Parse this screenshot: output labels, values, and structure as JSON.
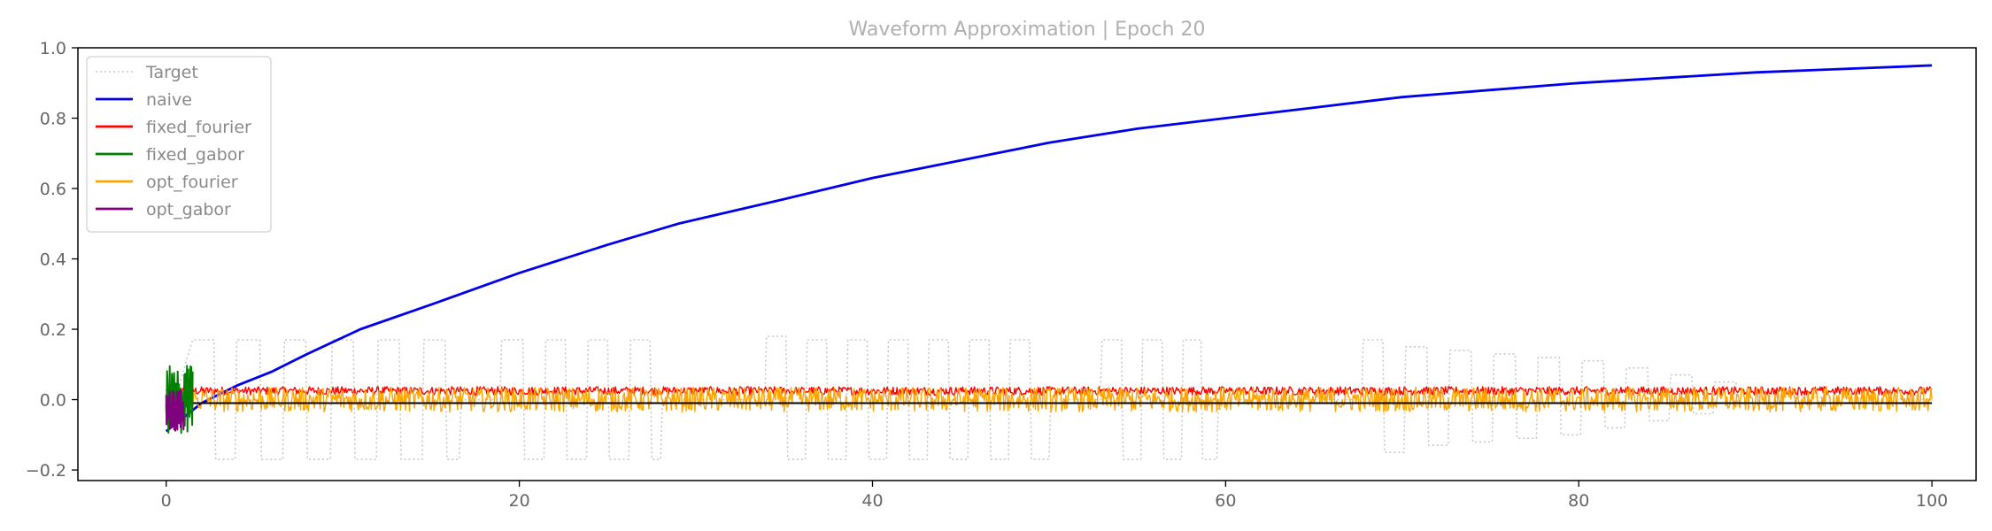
{
  "chart_data": {
    "type": "line",
    "title": "Waveform Approximation | Epoch 20",
    "xlabel": "",
    "ylabel": "",
    "xlim": [
      -5,
      102.5
    ],
    "ylim": [
      -0.23,
      1.0
    ],
    "xticks": [
      0,
      20,
      40,
      60,
      80,
      100
    ],
    "xtick_labels": [
      "0",
      "20",
      "40",
      "60",
      "80",
      "100"
    ],
    "yticks": [
      -0.2,
      0.0,
      0.2,
      0.4,
      0.6,
      0.8,
      1.0
    ],
    "ytick_labels": [
      "−0.2",
      "0.0",
      "0.2",
      "0.4",
      "0.6",
      "0.8",
      "1.0"
    ],
    "grid": false,
    "legend_position": "top-left",
    "series": [
      {
        "name": "Target",
        "color": "#c8c8c8",
        "style": "dotted",
        "description_points": [
          {
            "x": 0.3,
            "y": -0.03
          },
          {
            "x": 1.5,
            "y": 0.17
          },
          {
            "x": 2.7,
            "y": 0.17
          },
          {
            "x": 2.8,
            "y": -0.17
          },
          {
            "x": 3.9,
            "y": -0.17
          },
          {
            "x": 4.0,
            "y": 0.17
          },
          {
            "x": 5.3,
            "y": 0.17
          },
          {
            "x": 5.4,
            "y": -0.17
          },
          {
            "x": 6.6,
            "y": -0.17
          },
          {
            "x": 6.7,
            "y": 0.17
          },
          {
            "x": 7.9,
            "y": 0.17
          },
          {
            "x": 8.0,
            "y": -0.17
          },
          {
            "x": 9.3,
            "y": -0.17
          },
          {
            "x": 9.4,
            "y": 0.17
          },
          {
            "x": 10.6,
            "y": 0.17
          },
          {
            "x": 10.7,
            "y": -0.17
          },
          {
            "x": 11.9,
            "y": -0.17
          },
          {
            "x": 12.0,
            "y": 0.17
          },
          {
            "x": 13.2,
            "y": 0.17
          },
          {
            "x": 13.3,
            "y": -0.17
          },
          {
            "x": 14.5,
            "y": -0.17
          },
          {
            "x": 14.6,
            "y": 0.17
          },
          {
            "x": 15.8,
            "y": 0.17
          },
          {
            "x": 15.9,
            "y": -0.17
          },
          {
            "x": 16.6,
            "y": -0.17
          },
          {
            "x": 16.7,
            "y": 0.0
          },
          {
            "x": 18.9,
            "y": 0.0
          },
          {
            "x": 19.0,
            "y": 0.17
          },
          {
            "x": 20.2,
            "y": 0.17
          },
          {
            "x": 20.3,
            "y": -0.17
          },
          {
            "x": 21.4,
            "y": -0.17
          },
          {
            "x": 21.5,
            "y": 0.17
          },
          {
            "x": 22.6,
            "y": 0.17
          },
          {
            "x": 22.7,
            "y": -0.17
          },
          {
            "x": 23.8,
            "y": -0.17
          },
          {
            "x": 23.9,
            "y": 0.17
          },
          {
            "x": 25.0,
            "y": 0.17
          },
          {
            "x": 25.1,
            "y": -0.17
          },
          {
            "x": 26.2,
            "y": -0.17
          },
          {
            "x": 26.3,
            "y": 0.17
          },
          {
            "x": 27.4,
            "y": 0.17
          },
          {
            "x": 27.5,
            "y": -0.17
          },
          {
            "x": 28.0,
            "y": -0.17
          },
          {
            "x": 28.1,
            "y": 0.0
          },
          {
            "x": 33.9,
            "y": 0.0
          },
          {
            "x": 34.0,
            "y": 0.18
          },
          {
            "x": 35.1,
            "y": 0.18
          },
          {
            "x": 35.2,
            "y": -0.17
          },
          {
            "x": 36.2,
            "y": -0.17
          },
          {
            "x": 36.3,
            "y": 0.17
          },
          {
            "x": 37.4,
            "y": 0.17
          },
          {
            "x": 37.5,
            "y": -0.17
          },
          {
            "x": 38.5,
            "y": -0.17
          },
          {
            "x": 38.6,
            "y": 0.17
          },
          {
            "x": 39.7,
            "y": 0.17
          },
          {
            "x": 39.8,
            "y": -0.17
          },
          {
            "x": 40.8,
            "y": -0.17
          },
          {
            "x": 40.9,
            "y": 0.17
          },
          {
            "x": 42.0,
            "y": 0.17
          },
          {
            "x": 42.1,
            "y": -0.17
          },
          {
            "x": 43.1,
            "y": -0.17
          },
          {
            "x": 43.2,
            "y": 0.17
          },
          {
            "x": 44.3,
            "y": 0.17
          },
          {
            "x": 44.4,
            "y": -0.17
          },
          {
            "x": 45.4,
            "y": -0.17
          },
          {
            "x": 45.5,
            "y": 0.17
          },
          {
            "x": 46.6,
            "y": 0.17
          },
          {
            "x": 46.7,
            "y": -0.17
          },
          {
            "x": 47.7,
            "y": -0.17
          },
          {
            "x": 47.8,
            "y": 0.17
          },
          {
            "x": 48.9,
            "y": 0.17
          },
          {
            "x": 49.0,
            "y": -0.17
          },
          {
            "x": 50.0,
            "y": -0.17
          },
          {
            "x": 50.1,
            "y": 0.0
          },
          {
            "x": 52.9,
            "y": 0.0
          },
          {
            "x": 53.0,
            "y": 0.17
          },
          {
            "x": 54.1,
            "y": 0.17
          },
          {
            "x": 54.2,
            "y": -0.17
          },
          {
            "x": 55.2,
            "y": -0.17
          },
          {
            "x": 55.3,
            "y": 0.17
          },
          {
            "x": 56.4,
            "y": 0.17
          },
          {
            "x": 56.5,
            "y": -0.17
          },
          {
            "x": 57.5,
            "y": -0.17
          },
          {
            "x": 57.6,
            "y": 0.17
          },
          {
            "x": 58.6,
            "y": 0.17
          },
          {
            "x": 58.7,
            "y": -0.17
          },
          {
            "x": 59.5,
            "y": -0.17
          },
          {
            "x": 59.6,
            "y": 0.0
          },
          {
            "x": 67.7,
            "y": 0.0
          },
          {
            "x": 67.8,
            "y": 0.17
          },
          {
            "x": 68.9,
            "y": 0.17
          },
          {
            "x": 69.0,
            "y": -0.15
          },
          {
            "x": 70.1,
            "y": -0.15
          },
          {
            "x": 70.2,
            "y": 0.15
          },
          {
            "x": 71.4,
            "y": 0.15
          },
          {
            "x": 71.5,
            "y": -0.13
          },
          {
            "x": 72.6,
            "y": -0.13
          },
          {
            "x": 72.7,
            "y": 0.14
          },
          {
            "x": 73.9,
            "y": 0.14
          },
          {
            "x": 74.0,
            "y": -0.12
          },
          {
            "x": 75.1,
            "y": -0.12
          },
          {
            "x": 75.2,
            "y": 0.13
          },
          {
            "x": 76.4,
            "y": 0.13
          },
          {
            "x": 76.5,
            "y": -0.11
          },
          {
            "x": 77.6,
            "y": -0.11
          },
          {
            "x": 77.7,
            "y": 0.12
          },
          {
            "x": 78.9,
            "y": 0.12
          },
          {
            "x": 79.0,
            "y": -0.1
          },
          {
            "x": 80.1,
            "y": -0.1
          },
          {
            "x": 80.2,
            "y": 0.11
          },
          {
            "x": 81.4,
            "y": 0.11
          },
          {
            "x": 81.5,
            "y": -0.08
          },
          {
            "x": 82.6,
            "y": -0.08
          },
          {
            "x": 82.7,
            "y": 0.09
          },
          {
            "x": 83.9,
            "y": 0.09
          },
          {
            "x": 84.0,
            "y": -0.06
          },
          {
            "x": 85.1,
            "y": -0.06
          },
          {
            "x": 85.2,
            "y": 0.07
          },
          {
            "x": 86.4,
            "y": 0.07
          },
          {
            "x": 86.5,
            "y": -0.04
          },
          {
            "x": 87.6,
            "y": -0.04
          },
          {
            "x": 87.7,
            "y": 0.05
          },
          {
            "x": 88.9,
            "y": 0.05
          },
          {
            "x": 89.0,
            "y": -0.02
          },
          {
            "x": 90.1,
            "y": -0.02
          },
          {
            "x": 90.2,
            "y": 0.01
          },
          {
            "x": 100.0,
            "y": 0.0
          }
        ]
      },
      {
        "name": "naive",
        "color": "#0000ee",
        "style": "solid",
        "description_points": [
          {
            "x": 0.0,
            "y": -0.09
          },
          {
            "x": 1.0,
            "y": -0.05
          },
          {
            "x": 2.0,
            "y": -0.01
          },
          {
            "x": 4.0,
            "y": 0.04
          },
          {
            "x": 6.0,
            "y": 0.08
          },
          {
            "x": 8.0,
            "y": 0.13
          },
          {
            "x": 11.0,
            "y": 0.2
          },
          {
            "x": 15.0,
            "y": 0.27
          },
          {
            "x": 20.0,
            "y": 0.36
          },
          {
            "x": 25.0,
            "y": 0.44
          },
          {
            "x": 29.0,
            "y": 0.5
          },
          {
            "x": 35.0,
            "y": 0.57
          },
          {
            "x": 40.0,
            "y": 0.63
          },
          {
            "x": 45.0,
            "y": 0.68
          },
          {
            "x": 50.0,
            "y": 0.73
          },
          {
            "x": 55.0,
            "y": 0.77
          },
          {
            "x": 60.0,
            "y": 0.8
          },
          {
            "x": 65.0,
            "y": 0.83
          },
          {
            "x": 70.0,
            "y": 0.86
          },
          {
            "x": 75.0,
            "y": 0.88
          },
          {
            "x": 80.0,
            "y": 0.9
          },
          {
            "x": 85.0,
            "y": 0.915
          },
          {
            "x": 90.0,
            "y": 0.93
          },
          {
            "x": 95.0,
            "y": 0.94
          },
          {
            "x": 100.0,
            "y": 0.95
          }
        ]
      },
      {
        "name": "fixed_fourier",
        "color": "#ff0000",
        "style": "noisy",
        "x_range": [
          0.0,
          100.0
        ],
        "mean": 0.025,
        "amplitude": 0.012
      },
      {
        "name": "fixed_gabor",
        "color": "#008000",
        "style": "noisy",
        "x_range": [
          0.0,
          1.5
        ],
        "mean": 0.0,
        "amplitude": 0.1
      },
      {
        "name": "opt_fourier",
        "color": "#ffa500",
        "style": "noisy",
        "x_range": [
          0.0,
          100.0
        ],
        "mean": 0.0,
        "amplitude": 0.035
      },
      {
        "name": "opt_gabor",
        "color": "#800080",
        "style": "noisy",
        "x_range": [
          0.0,
          1.0
        ],
        "mean": -0.03,
        "amplitude": 0.06
      }
    ],
    "baseline": {
      "color": "#000000",
      "x_range": [
        0.0,
        100.0
      ],
      "y": -0.01
    }
  }
}
